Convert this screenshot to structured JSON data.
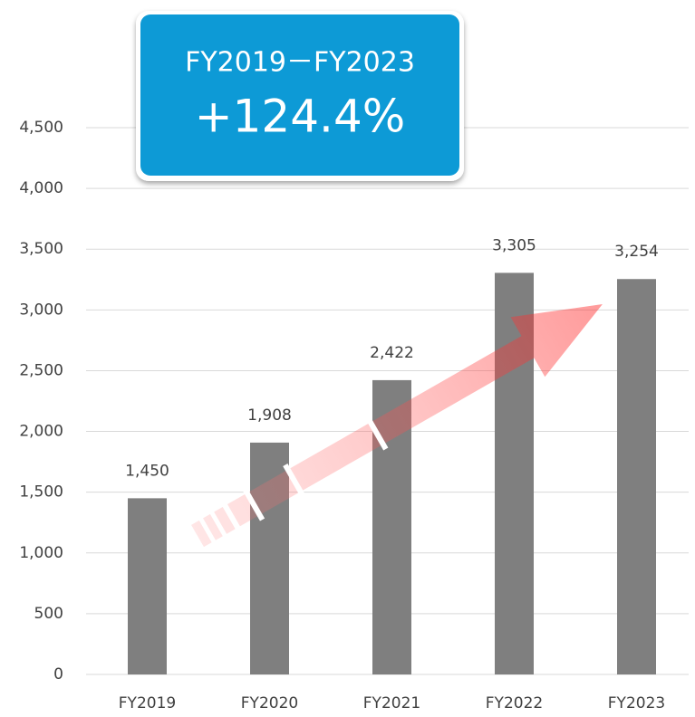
{
  "chart_data": {
    "type": "bar",
    "annotations": [
      "FY2019－FY2023",
      "+124.4%"
    ],
    "categories": [
      "FY2019",
      "FY2020",
      "FY2021",
      "FY2022",
      "FY2023"
    ],
    "values": [
      1450,
      1908,
      2422,
      3305,
      3254
    ],
    "value_labels": [
      "1,450",
      "1,908",
      "2,422",
      "3,305",
      "3,254"
    ],
    "color": "#7f7f7f",
    "ylim": [
      0,
      4500
    ],
    "yticks": [
      0,
      500,
      {
        "value": 1000,
        "label": "1,000"
      },
      {
        "value": 1500,
        "label": "1,500"
      },
      {
        "value": 2000,
        "label": "2,000"
      },
      {
        "value": 2500,
        "label": "2,500"
      },
      {
        "value": 3000,
        "label": "3,000"
      },
      {
        "value": 3500,
        "label": "3,500"
      },
      {
        "value": 4000,
        "label": "4,000"
      },
      {
        "value": 4500,
        "label": "4,500"
      }
    ],
    "grid": true
  }
}
